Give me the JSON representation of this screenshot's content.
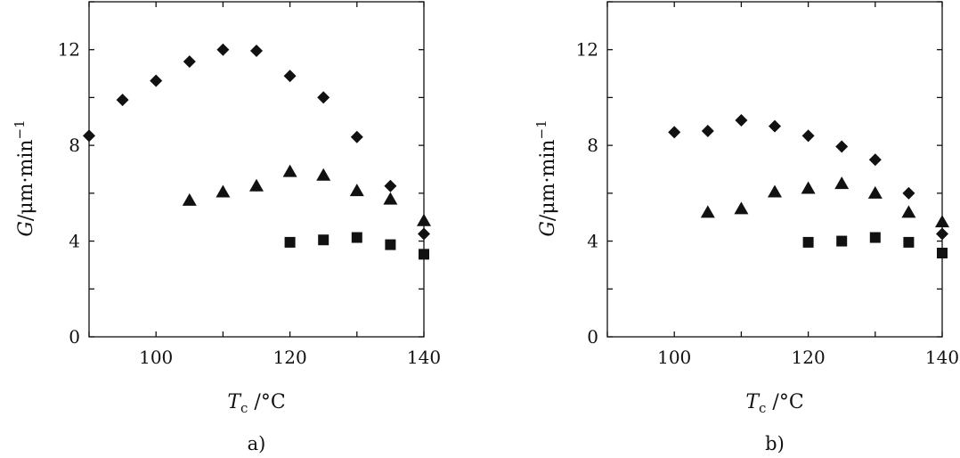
{
  "chart_data": [
    {
      "type": "scatter",
      "panel_label": "a)",
      "xlabel_main": "T",
      "xlabel_sub": "c",
      "xlabel_unit": " /°C",
      "ylabel_main": "G",
      "ylabel_unit": "/μm·min",
      "ylabel_sup": "−1",
      "xlim": [
        90,
        140
      ],
      "ylim": [
        0,
        14
      ],
      "x_ticks": [
        "100",
        "120",
        "140"
      ],
      "y_ticks": [
        "0",
        "4",
        "8",
        "12"
      ],
      "grid": false,
      "series": [
        {
          "marker": "diamond",
          "points": [
            [
              90,
              8.4
            ],
            [
              95,
              9.9
            ],
            [
              100,
              10.7
            ],
            [
              105,
              11.5
            ],
            [
              110,
              12.0
            ],
            [
              115,
              11.95
            ],
            [
              120,
              10.9
            ],
            [
              125,
              10.0
            ],
            [
              130,
              8.35
            ],
            [
              135,
              6.3
            ],
            [
              140,
              4.3
            ]
          ]
        },
        {
          "marker": "triangle",
          "points": [
            [
              105,
              5.7
            ],
            [
              110,
              6.05
            ],
            [
              115,
              6.3
            ],
            [
              120,
              6.9
            ],
            [
              125,
              6.75
            ],
            [
              130,
              6.1
            ],
            [
              135,
              5.75
            ],
            [
              140,
              4.85
            ]
          ]
        },
        {
          "marker": "square",
          "points": [
            [
              120,
              3.95
            ],
            [
              125,
              4.05
            ],
            [
              130,
              4.15
            ],
            [
              135,
              3.85
            ],
            [
              140,
              3.45
            ]
          ]
        }
      ]
    },
    {
      "type": "scatter",
      "panel_label": "b)",
      "xlabel_main": "T",
      "xlabel_sub": "c",
      "xlabel_unit": " /°C",
      "ylabel_main": "G",
      "ylabel_unit": "/μm·min",
      "ylabel_sup": "−1",
      "xlim": [
        90,
        140
      ],
      "ylim": [
        0,
        14
      ],
      "x_ticks": [
        "100",
        "120",
        "140"
      ],
      "y_ticks": [
        "0",
        "4",
        "8",
        "12"
      ],
      "grid": false,
      "series": [
        {
          "marker": "diamond",
          "points": [
            [
              100,
              8.55
            ],
            [
              105,
              8.6
            ],
            [
              110,
              9.05
            ],
            [
              115,
              8.8
            ],
            [
              120,
              8.4
            ],
            [
              125,
              7.95
            ],
            [
              130,
              7.4
            ],
            [
              135,
              6.0
            ],
            [
              140,
              4.3
            ]
          ]
        },
        {
          "marker": "triangle",
          "points": [
            [
              105,
              5.2
            ],
            [
              110,
              5.35
            ],
            [
              115,
              6.05
            ],
            [
              120,
              6.2
            ],
            [
              125,
              6.4
            ],
            [
              130,
              6.0
            ],
            [
              135,
              5.2
            ],
            [
              140,
              4.8
            ]
          ]
        },
        {
          "marker": "square",
          "points": [
            [
              120,
              3.95
            ],
            [
              125,
              4.0
            ],
            [
              130,
              4.15
            ],
            [
              135,
              3.95
            ],
            [
              140,
              3.5
            ]
          ]
        }
      ]
    }
  ]
}
